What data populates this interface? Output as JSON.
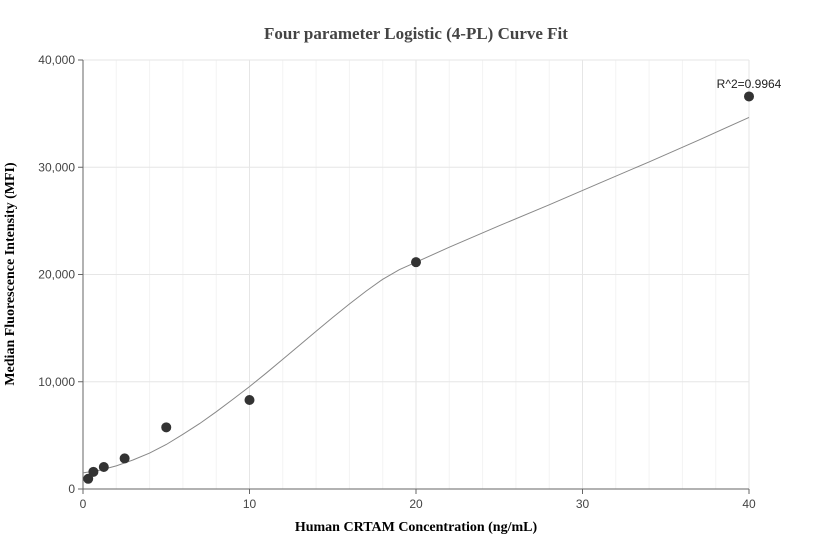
{
  "chart_data": {
    "type": "scatter",
    "title": "Four parameter Logistic (4-PL) Curve Fit",
    "xlabel": "Human CRTAM Concentration (ng/mL)",
    "ylabel": "Median Fluorescence Intensity (MFI)",
    "xlim": [
      0,
      40
    ],
    "ylim": [
      0,
      40000
    ],
    "x_ticks": [
      0,
      10,
      20,
      30,
      40
    ],
    "x_tick_labels": [
      "0",
      "10",
      "20",
      "30",
      "40"
    ],
    "y_ticks": [
      0,
      10000,
      20000,
      30000,
      40000
    ],
    "y_tick_labels": [
      "0",
      "10,000",
      "20,000",
      "30,000",
      "40,000"
    ],
    "grid": true,
    "series": [
      {
        "points": [
          {
            "x": 0.3125,
            "y": 950
          },
          {
            "x": 0.625,
            "y": 1600
          },
          {
            "x": 1.25,
            "y": 2050
          },
          {
            "x": 2.5,
            "y": 2850
          },
          {
            "x": 5,
            "y": 5750
          },
          {
            "x": 10,
            "y": 8300
          },
          {
            "x": 20,
            "y": 21150
          },
          {
            "x": 40,
            "y": 36600
          }
        ],
        "color": "#333333"
      }
    ],
    "fit_curve": {
      "color": "#888888",
      "points": [
        {
          "x": 0,
          "y": 1500
        },
        {
          "x": 1,
          "y": 1750
        },
        {
          "x": 2,
          "y": 2150
        },
        {
          "x": 3,
          "y": 2700
        },
        {
          "x": 4,
          "y": 3350
        },
        {
          "x": 5,
          "y": 4150
        },
        {
          "x": 6,
          "y": 5100
        },
        {
          "x": 7,
          "y": 6100
        },
        {
          "x": 8,
          "y": 7200
        },
        {
          "x": 9,
          "y": 8350
        },
        {
          "x": 10,
          "y": 9550
        },
        {
          "x": 11,
          "y": 10800
        },
        {
          "x": 12,
          "y": 12100
        },
        {
          "x": 13,
          "y": 13400
        },
        {
          "x": 14,
          "y": 14700
        },
        {
          "x": 15,
          "y": 16000
        },
        {
          "x": 16,
          "y": 17250
        },
        {
          "x": 17,
          "y": 18450
        },
        {
          "x": 18,
          "y": 19550
        },
        {
          "x": 19,
          "y": 20450
        },
        {
          "x": 20,
          "y": 21150
        },
        {
          "x": 22,
          "y": 22550
        },
        {
          "x": 25,
          "y": 24550
        },
        {
          "x": 28,
          "y": 26500
        },
        {
          "x": 31,
          "y": 28500
        },
        {
          "x": 34,
          "y": 30500
        },
        {
          "x": 37,
          "y": 32550
        },
        {
          "x": 40,
          "y": 34650
        }
      ]
    },
    "annotation": "R^2=0.9964"
  },
  "colors": {
    "grid": "#e6e6e6",
    "minor_grid": "#f3f3f3",
    "axis": "#666666"
  }
}
